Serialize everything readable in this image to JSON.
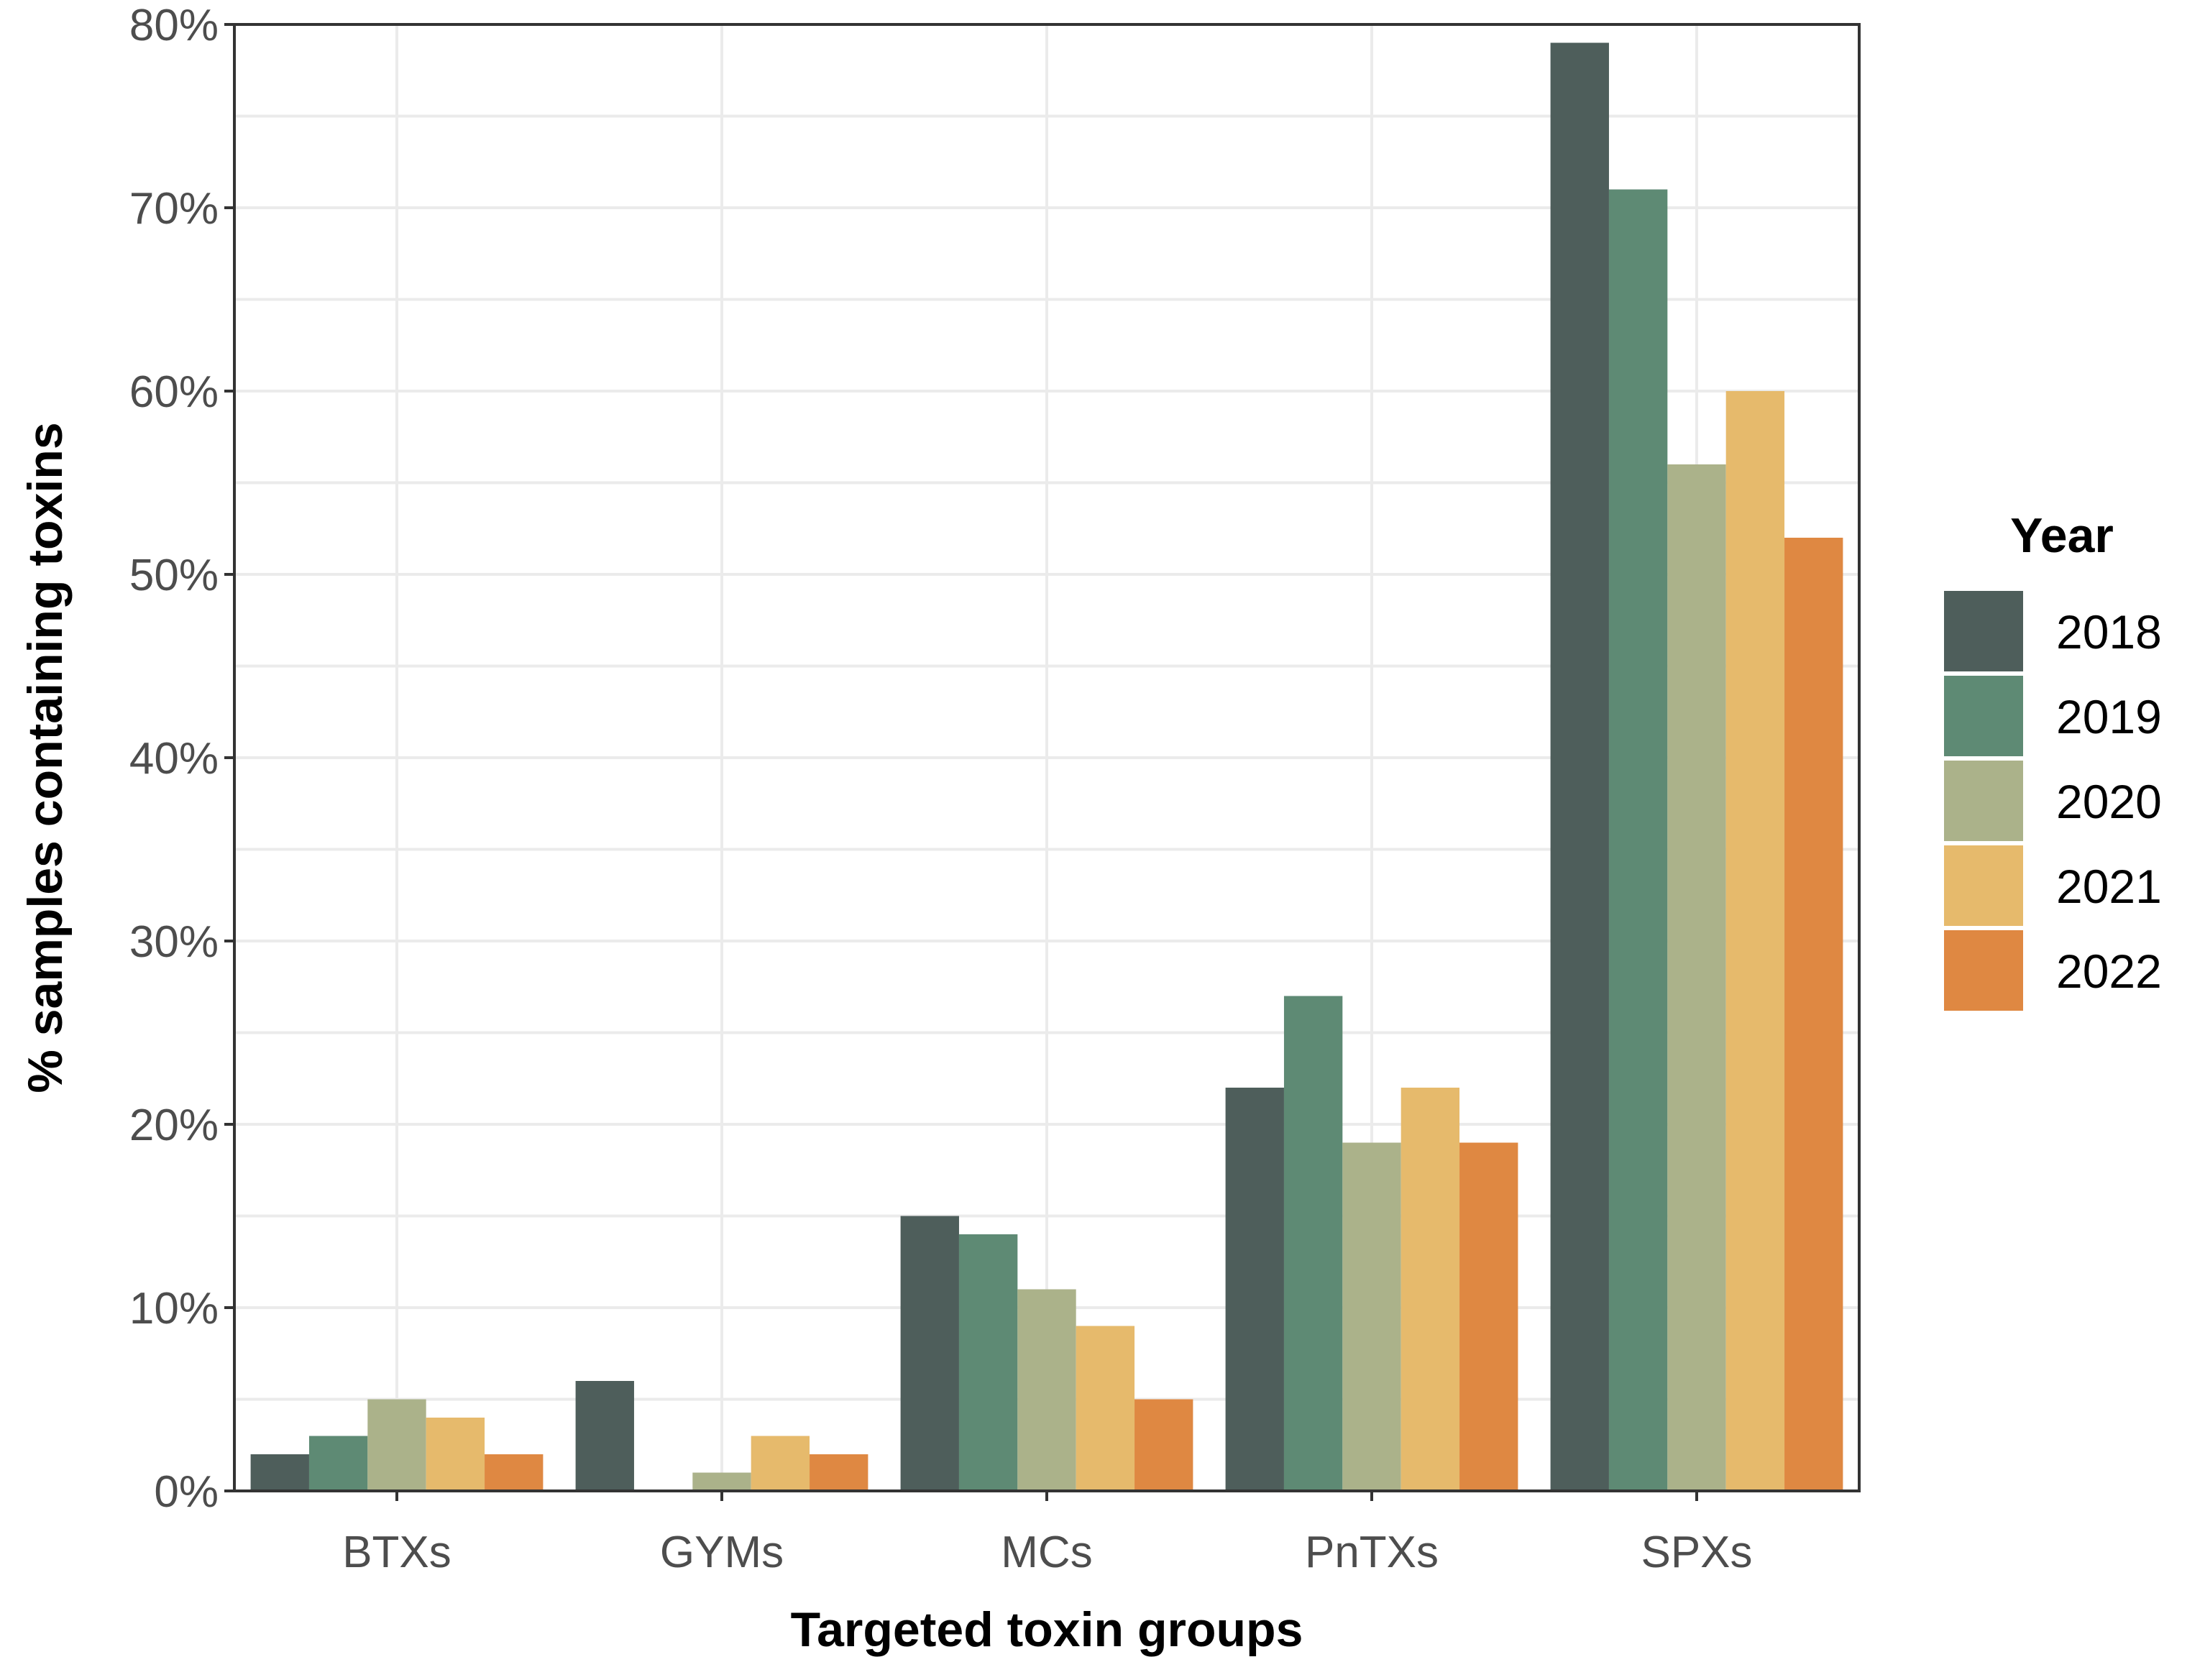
{
  "chart_data": {
    "type": "bar",
    "title": "",
    "xlabel": "Targeted toxin groups",
    "ylabel": "% samples containing toxins",
    "ylim": [
      0,
      80
    ],
    "yticks": [
      0,
      10,
      20,
      30,
      40,
      50,
      60,
      70,
      80
    ],
    "ytick_labels": [
      "0%",
      "10%",
      "20%",
      "30%",
      "40%",
      "50%",
      "60%",
      "70%",
      "80%"
    ],
    "grid": true,
    "categories": [
      "BTXs",
      "GYMs",
      "MCs",
      "PnTXs",
      "SPXs"
    ],
    "legend": {
      "title": "Year",
      "position": "right"
    },
    "series": [
      {
        "name": "2018",
        "color": "#4e5e5b",
        "values": [
          2,
          6,
          15,
          22,
          79
        ]
      },
      {
        "name": "2019",
        "color": "#5e8a74",
        "values": [
          3,
          0,
          14,
          27,
          71
        ]
      },
      {
        "name": "2020",
        "color": "#abb28a",
        "values": [
          5,
          1,
          11,
          19,
          56
        ]
      },
      {
        "name": "2021",
        "color": "#e6ba6c",
        "values": [
          4,
          3,
          9,
          22,
          60
        ]
      },
      {
        "name": "2022",
        "color": "#df8842",
        "values": [
          2,
          2,
          5,
          19,
          52
        ]
      }
    ]
  }
}
